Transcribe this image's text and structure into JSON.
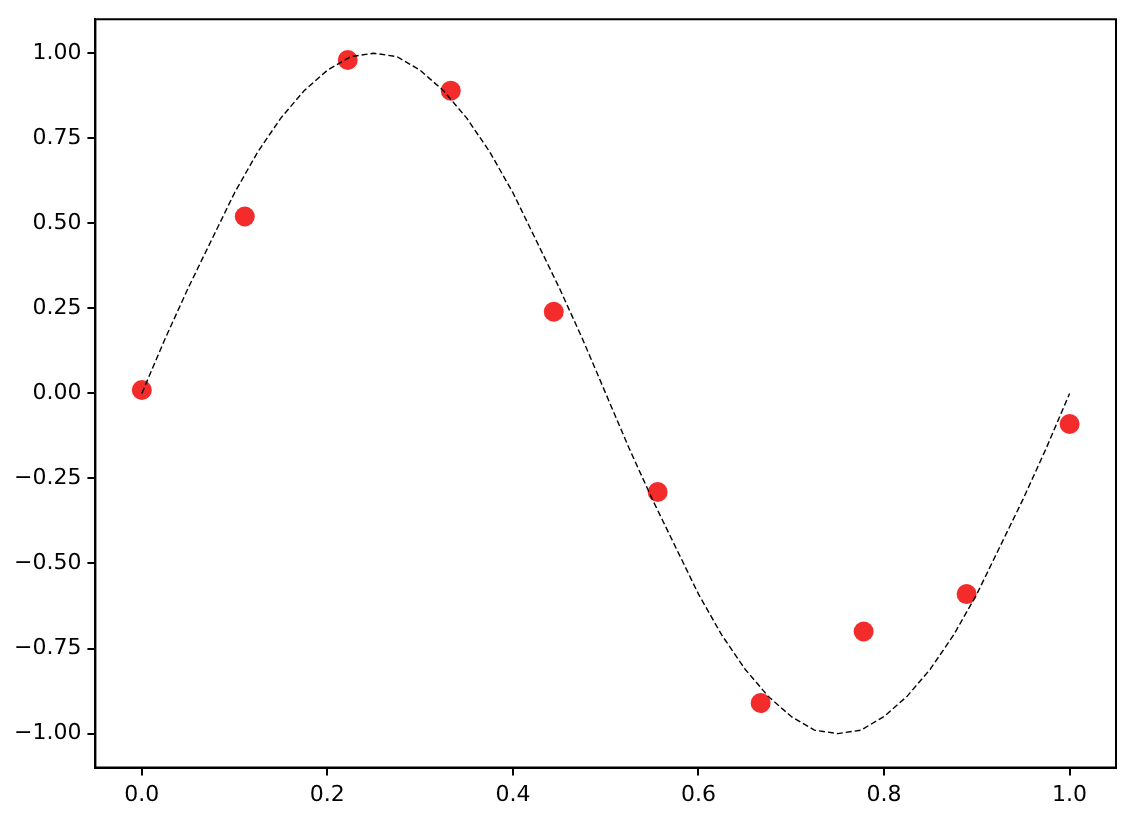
{
  "chart_data": {
    "type": "scatter",
    "xlim": [
      -0.05,
      1.05
    ],
    "ylim": [
      -1.1,
      1.1
    ],
    "xticks": [
      {
        "value": 0,
        "label": "0.0"
      },
      {
        "value": 0.2,
        "label": "0.2"
      },
      {
        "value": 0.4,
        "label": "0.4"
      },
      {
        "value": 0.6,
        "label": "0.6"
      },
      {
        "value": 0.8,
        "label": "0.8"
      },
      {
        "value": 1,
        "label": "1.0"
      }
    ],
    "yticks": [
      {
        "value": -1,
        "label": "−1.00"
      },
      {
        "value": -0.75,
        "label": "−0.75"
      },
      {
        "value": -0.5,
        "label": "−0.50"
      },
      {
        "value": -0.25,
        "label": "−0.25"
      },
      {
        "value": 0,
        "label": "0.00"
      },
      {
        "value": 0.25,
        "label": "0.25"
      },
      {
        "value": 0.5,
        "label": "0.50"
      },
      {
        "value": 0.75,
        "label": "0.75"
      },
      {
        "value": 1,
        "label": "1.00"
      }
    ],
    "grid": false,
    "legend": false,
    "series": [
      {
        "type": "line",
        "color": "#000000",
        "line_style": "dashed",
        "marker": "none",
        "x": [
          0,
          0.025,
          0.05,
          0.075,
          0.1,
          0.125,
          0.15,
          0.175,
          0.2,
          0.225,
          0.25,
          0.275,
          0.3,
          0.325,
          0.35,
          0.375,
          0.4,
          0.425,
          0.45,
          0.475,
          0.5,
          0.525,
          0.55,
          0.575,
          0.6,
          0.625,
          0.65,
          0.675,
          0.7,
          0.725,
          0.75,
          0.775,
          0.8,
          0.825,
          0.85,
          0.875,
          0.9,
          0.925,
          0.95,
          0.975,
          1
        ],
        "values": [
          0,
          0.16,
          0.31,
          0.45,
          0.59,
          0.71,
          0.81,
          0.89,
          0.95,
          0.99,
          1,
          0.99,
          0.95,
          0.89,
          0.81,
          0.71,
          0.59,
          0.45,
          0.31,
          0.16,
          0,
          -0.16,
          -0.31,
          -0.45,
          -0.59,
          -0.71,
          -0.81,
          -0.89,
          -0.95,
          -0.99,
          -1,
          -0.99,
          -0.95,
          -0.89,
          -0.81,
          -0.71,
          -0.59,
          -0.45,
          -0.31,
          -0.16,
          0
        ]
      },
      {
        "type": "scatter",
        "color": "#f32b2b",
        "marker": "circle",
        "x": [
          0,
          0.111,
          0.222,
          0.333,
          0.444,
          0.556,
          0.667,
          0.778,
          0.889,
          1
        ],
        "values": [
          0.01,
          0.52,
          0.98,
          0.89,
          0.24,
          -0.29,
          -0.91,
          -0.7,
          -0.59,
          -0.09
        ]
      }
    ]
  }
}
